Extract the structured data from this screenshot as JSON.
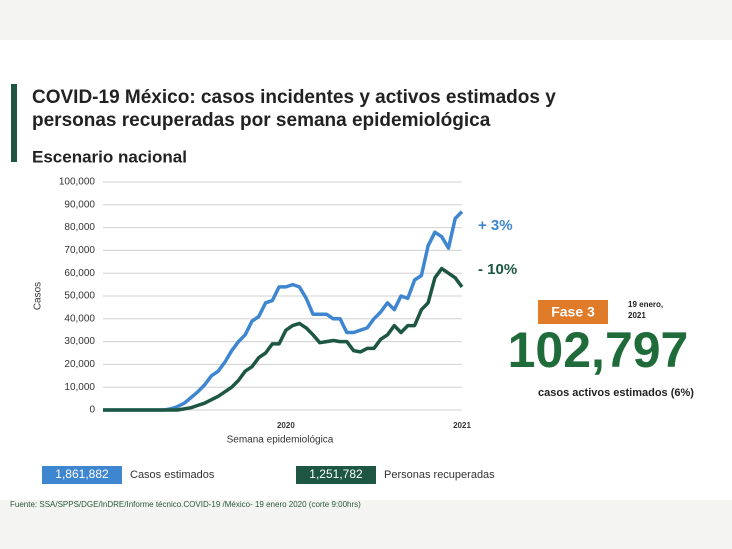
{
  "chart_data": {
    "type": "line",
    "title": [
      "COVID-19 México: casos incidentes y activos estimados y",
      "personas recuperadas por semana epidemiológica"
    ],
    "subtitle": "Escenario nacional",
    "y_label": "Casos",
    "x_label": "Semana epidemiológica",
    "categories": [
      null,
      null,
      null,
      null,
      null,
      null,
      null,
      null,
      null,
      null,
      null,
      null,
      null,
      null,
      null,
      null,
      null,
      null,
      null,
      null,
      null,
      null,
      null,
      null,
      null,
      null,
      null,
      "2020",
      null,
      null,
      null,
      null,
      null,
      null,
      null,
      null,
      null,
      null,
      null,
      null,
      null,
      null,
      null,
      null,
      null,
      null,
      null,
      null,
      null,
      null,
      null,
      null,
      null,
      "2021"
    ],
    "series": [
      {
        "name": "Casos estimados",
        "total": "1,861,882",
        "color": "#3f86d0",
        "values": [
          0,
          0,
          0,
          0,
          0,
          0,
          0,
          0,
          0,
          0,
          500,
          1500,
          3000,
          5500,
          8000,
          11000,
          15000,
          17000,
          21000,
          26000,
          30000,
          33000,
          39000,
          41000,
          47000,
          48000,
          54000,
          54000,
          55000,
          54000,
          49000,
          42000,
          42000,
          42000,
          40000,
          40000,
          34000,
          34000,
          35000,
          36000,
          40000,
          43000,
          47000,
          44000,
          50000,
          49000,
          57000,
          59000,
          72000,
          78000,
          76000,
          71000,
          84000,
          87000
        ]
      },
      {
        "name": "Personas recuperadas",
        "total": "1,251,782",
        "color": "#1d5643",
        "values": [
          0,
          0,
          0,
          0,
          0,
          0,
          0,
          0,
          0,
          0,
          0,
          0,
          500,
          1000,
          2000,
          3000,
          4500,
          6000,
          8000,
          10000,
          13000,
          17000,
          19000,
          23000,
          25000,
          29000,
          29000,
          35000,
          37000,
          38000,
          36000,
          33000,
          29500,
          30000,
          30500,
          30000,
          30000,
          26000,
          25500,
          27000,
          27000,
          31000,
          33000,
          37000,
          34000,
          37000,
          37000,
          44000,
          47000,
          58000,
          62000,
          60000,
          58000,
          54000
        ]
      }
    ],
    "annotations": [
      {
        "text": "+ 3%",
        "color": "#3f86d0"
      },
      {
        "text": "- 10%",
        "color": "#1d5643"
      }
    ],
    "ylim": [
      0,
      100000
    ],
    "yticks": [
      0,
      {
        "value": 10000,
        "label": "10,000"
      },
      {
        "value": 20000,
        "label": "20,000"
      },
      {
        "value": 30000,
        "label": "30,000"
      },
      {
        "value": 40000,
        "label": "40,000"
      },
      {
        "value": 50000,
        "label": "50,000"
      },
      {
        "value": 60000,
        "label": "60,000"
      },
      {
        "value": 70000,
        "label": "70,000"
      },
      {
        "value": 80000,
        "label": "80,000"
      },
      {
        "value": 90000,
        "label": "90,000"
      },
      {
        "value": 100000,
        "label": "100,000"
      }
    ],
    "grid": true
  },
  "summary": {
    "phase": "Fase 3",
    "date": [
      "19 enero,",
      "2021"
    ],
    "active_cases": "102,797",
    "caption": "casos activos estimados (6%)"
  },
  "footer": "Fuente: SSA/SPPS/DGE/InDRE/Informe técnico.COVID-19 /México- 19 enero 2020 (corte 9:00hrs)"
}
